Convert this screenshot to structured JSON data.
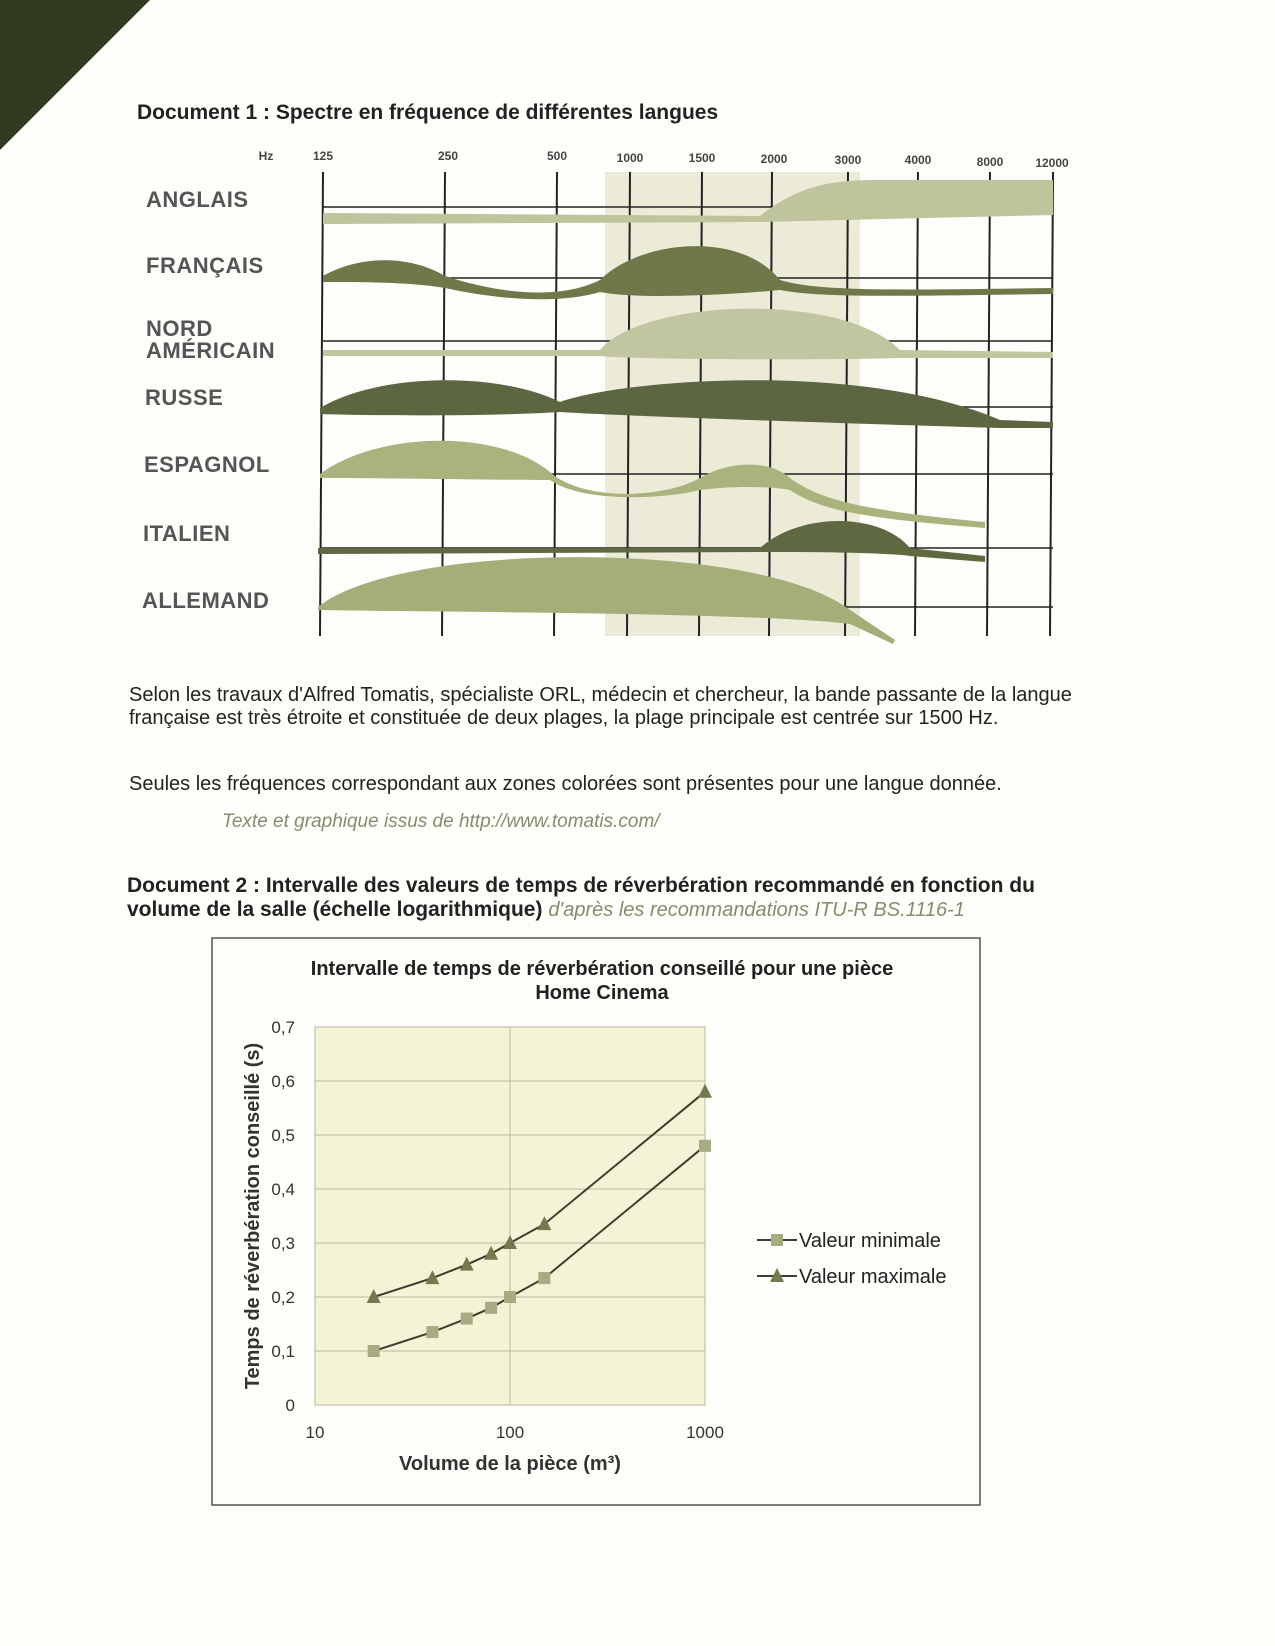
{
  "document1": {
    "title": "Document 1 : Spectre en fréquence de différentes langues",
    "unit": "Hz",
    "frequencies": [
      "125",
      "250",
      "500",
      "1000",
      "1500",
      "2000",
      "3000",
      "4000",
      "8000",
      "12000"
    ],
    "languages": [
      "ANGLAIS",
      "FRANÇAIS",
      "NORD AMÉRICAIN",
      "RUSSE",
      "ESPAGNOL",
      "ITALIEN",
      "ALLEMAND"
    ]
  },
  "paragraphs": [
    "Selon les travaux d'Alfred Tomatis, spécialiste ORL, médecin et chercheur, la bande passante de la langue française est très étroite et constituée de deux plages, la plage principale est centrée sur 1500 Hz.",
    "Seules les fréquences correspondant aux zones colorées sont présentes pour une langue donnée."
  ],
  "source": "Texte et graphique issus de http://www.tomatis.com/",
  "document2": {
    "title": "Document 2 : Intervalle des valeurs de temps de réverbération recommandé en fonction du volume de la salle (échelle logarithmique)",
    "reference": "d'après les recommandations ITU-R BS.1116-1"
  },
  "chart_data": {
    "type": "line",
    "title": "Intervalle de temps de réverbération conseillé pour une pièce Home Cinema",
    "x_label": "Volume de la pièce (m³)",
    "y_label": "Temps de réverbération conseillé (s)",
    "x_scale": "log",
    "xlim": [
      10,
      1000
    ],
    "xticks": [
      10,
      100,
      1000
    ],
    "ylim": [
      0,
      0.7
    ],
    "yticks": [
      0,
      {
        "value": 0.1,
        "label": "0,1"
      },
      {
        "value": 0.2,
        "label": "0,2"
      },
      {
        "value": 0.3,
        "label": "0,3"
      },
      {
        "value": 0.4,
        "label": "0,4"
      },
      {
        "value": 0.5,
        "label": "0,5"
      },
      {
        "value": 0.6,
        "label": "0,6"
      },
      {
        "value": 0.7,
        "label": "0,7"
      }
    ],
    "grid": true,
    "legend": "right",
    "series": [
      {
        "name": "Valeur minimale",
        "color": "#a6ab82",
        "marker": "square",
        "x": [
          20,
          40,
          60,
          80,
          100,
          150,
          1000
        ],
        "values": [
          0.1,
          0.135,
          0.16,
          0.18,
          0.2,
          0.235,
          0.48
        ]
      },
      {
        "name": "Valeur maximale",
        "color": "#747a4e",
        "marker": "triangle",
        "x": [
          20,
          40,
          60,
          80,
          100,
          150,
          1000
        ],
        "values": [
          0.2,
          0.235,
          0.26,
          0.28,
          0.3,
          0.335,
          0.58
        ]
      }
    ]
  }
}
